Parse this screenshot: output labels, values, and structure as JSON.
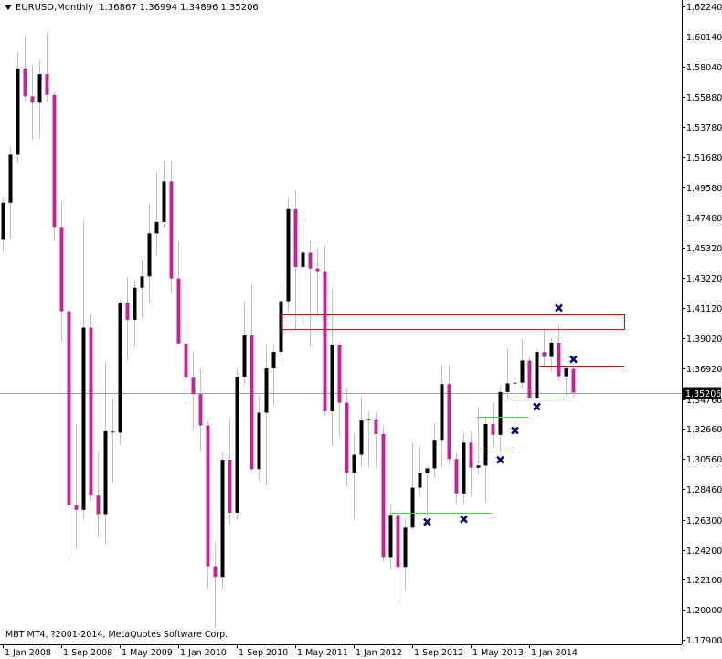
{
  "chart_data": {
    "type": "candlestick",
    "title": "EURUSD,Monthly",
    "footer": "MBT MT4, ?2001-2014, MetaQuotes Software Corp.",
    "categories": [
      "1 Jan 2008",
      null,
      null,
      null,
      null,
      null,
      null,
      null,
      "1 Sep 2008",
      null,
      null,
      null,
      null,
      null,
      null,
      null,
      "1 May 2009",
      null,
      null,
      null,
      null,
      null,
      null,
      null,
      "1 Jan 2010",
      null,
      null,
      null,
      null,
      null,
      null,
      null,
      "1 Sep 2010",
      null,
      null,
      null,
      null,
      null,
      null,
      null,
      "1 May 2011",
      null,
      null,
      null,
      null,
      null,
      null,
      null,
      "1 Jan 2012",
      null,
      null,
      null,
      null,
      null,
      null,
      null,
      "1 Sep 2012",
      null,
      null,
      null,
      null,
      null,
      null,
      null,
      "1 May 2013",
      null,
      null,
      null,
      null,
      null,
      null,
      null,
      "1 Jan 2014",
      null,
      null,
      null,
      null,
      null,
      null
    ],
    "open": [
      1.459,
      1.485,
      1.5185,
      1.579,
      1.5595,
      1.555,
      1.575,
      1.5605,
      1.468,
      1.409,
      1.273,
      1.27,
      1.3975,
      1.28,
      1.267,
      1.325,
      1.324,
      1.415,
      1.403,
      1.4255,
      1.4335,
      1.4635,
      1.4715,
      1.5,
      1.432,
      1.3865,
      1.3625,
      1.351,
      1.329,
      1.2305,
      1.223,
      1.305,
      1.268,
      1.363,
      1.392,
      1.2985,
      1.338,
      1.369,
      1.3805,
      1.416,
      1.4805,
      1.44,
      1.45,
      1.439,
      1.4365,
      1.339,
      1.3855,
      1.345,
      1.296,
      1.3085,
      1.3325,
      1.3335,
      1.323,
      1.237,
      1.2665,
      1.23,
      1.2575,
      1.2855,
      1.2955,
      1.299,
      1.319,
      1.358,
      1.3055,
      1.2815,
      1.317,
      1.2995,
      1.301,
      1.33,
      1.3225,
      1.3525,
      1.3585,
      1.359,
      1.3745,
      1.3485,
      1.3805,
      1.377,
      1.387,
      1.3635,
      1.36867
    ],
    "high": [
      1.4885,
      1.524,
      1.5905,
      1.602,
      1.582,
      1.5845,
      1.6038,
      1.562,
      1.4865,
      1.412,
      1.33,
      1.472,
      1.407,
      1.311,
      1.374,
      1.348,
      1.4175,
      1.4335,
      1.4305,
      1.4445,
      1.4845,
      1.5065,
      1.5145,
      1.5145,
      1.458,
      1.399,
      1.3805,
      1.369,
      1.332,
      1.247,
      1.3105,
      1.3335,
      1.369,
      1.416,
      1.428,
      1.35,
      1.386,
      1.386,
      1.4245,
      1.488,
      1.494,
      1.47,
      1.458,
      1.454,
      1.455,
      1.4245,
      1.3875,
      1.355,
      1.3235,
      1.349,
      1.3385,
      1.338,
      1.3285,
      1.2745,
      1.269,
      1.264,
      1.317,
      1.314,
      1.301,
      1.331,
      1.371,
      1.371,
      1.31,
      1.324,
      1.3245,
      1.3415,
      1.3345,
      1.345,
      1.357,
      1.383,
      1.362,
      1.3895,
      1.3775,
      1.3825,
      1.3965,
      1.3905,
      1.3995,
      1.37,
      1.36994
    ],
    "low": [
      1.4505,
      1.4595,
      1.513,
      1.556,
      1.5285,
      1.53,
      1.5555,
      1.458,
      1.388,
      1.233,
      1.242,
      1.263,
      1.276,
      1.251,
      1.2455,
      1.2885,
      1.3155,
      1.3745,
      1.384,
      1.4045,
      1.414,
      1.448,
      1.467,
      1.4215,
      1.3865,
      1.344,
      1.3265,
      1.3115,
      1.2145,
      1.1875,
      1.215,
      1.259,
      1.263,
      1.3575,
      1.297,
      1.2905,
      1.287,
      1.343,
      1.3735,
      1.4085,
      1.3965,
      1.4,
      1.384,
      1.405,
      1.336,
      1.3145,
      1.3215,
      1.286,
      1.2625,
      1.3,
      1.3,
      1.3,
      1.234,
      1.2285,
      1.204,
      1.2135,
      1.256,
      1.28,
      1.266,
      1.2925,
      1.3,
      1.302,
      1.2745,
      1.2745,
      1.2795,
      1.295,
      1.2755,
      1.313,
      1.31,
      1.348,
      1.3295,
      1.3545,
      1.348,
      1.3475,
      1.3705,
      1.367,
      1.36,
      1.35,
      1.34896
    ],
    "close": [
      1.485,
      1.5185,
      1.579,
      1.5595,
      1.555,
      1.575,
      1.5605,
      1.468,
      1.409,
      1.273,
      1.27,
      1.3975,
      1.28,
      1.267,
      1.325,
      1.324,
      1.415,
      1.403,
      1.4255,
      1.4335,
      1.4635,
      1.4715,
      1.5,
      1.432,
      1.3865,
      1.3625,
      1.351,
      1.329,
      1.2305,
      1.223,
      1.305,
      1.268,
      1.363,
      1.392,
      1.2985,
      1.338,
      1.369,
      1.3805,
      1.416,
      1.4805,
      1.44,
      1.45,
      1.439,
      1.4365,
      1.339,
      1.3855,
      1.345,
      1.296,
      1.3085,
      1.3325,
      1.3335,
      1.323,
      1.237,
      1.2665,
      1.23,
      1.2575,
      1.2855,
      1.2955,
      1.299,
      1.319,
      1.358,
      1.3055,
      1.2815,
      1.317,
      1.2995,
      1.301,
      1.33,
      1.3225,
      1.3525,
      1.3585,
      1.359,
      1.3745,
      1.3485,
      1.3805,
      1.377,
      1.387,
      1.3635,
      1.369,
      1.35206
    ],
    "bull_color": "#000000",
    "bear_color": "#c8219b",
    "wick_color": "#c0c0c0",
    "price_line_color": "#8fa3a3",
    "ylim": [
      1.1758,
      1.6269
    ],
    "yticks": [
      {
        "value": 1.6224,
        "label": "1.62240"
      },
      {
        "value": 1.6014,
        "label": "1.60140"
      },
      {
        "value": 1.5804,
        "label": "1.58040"
      },
      {
        "value": 1.5588,
        "label": "1.55880"
      },
      {
        "value": 1.5378,
        "label": "1.53780"
      },
      {
        "value": 1.5168,
        "label": "1.51680"
      },
      {
        "value": 1.4958,
        "label": "1.49580"
      },
      {
        "value": 1.4748,
        "label": "1.47480"
      },
      {
        "value": 1.4532,
        "label": "1.45320"
      },
      {
        "value": 1.4322,
        "label": "1.43220"
      },
      {
        "value": 1.4112,
        "label": "1.41120"
      },
      {
        "value": 1.3902,
        "label": "1.39020"
      },
      {
        "value": 1.3692,
        "label": "1.36920"
      },
      {
        "value": 1.3476,
        "label": "1.34760"
      },
      {
        "value": 1.3266,
        "label": "1.32660"
      },
      {
        "value": 1.3056,
        "label": "1.30560"
      },
      {
        "value": 1.2846,
        "label": "1.28460"
      },
      {
        "value": 1.263,
        "label": "1.26300"
      },
      {
        "value": 1.242,
        "label": "1.24200"
      },
      {
        "value": 1.221,
        "label": "1.22100"
      },
      {
        "value": 1.2,
        "label": "1.20000"
      },
      {
        "value": 1.179,
        "label": "1.17900"
      }
    ],
    "rectangles": [
      {
        "x": [
          38.1,
          85
        ],
        "y": [
          1.3965,
          1.4068
        ],
        "color": "#e00000"
      }
    ],
    "levels": [
      {
        "x": [
          73.4,
          85
        ],
        "y": 1.3709,
        "color": "#e00000"
      },
      {
        "x": [
          53.1,
          66.9
        ],
        "y": 1.2679,
        "color": "#33dd33"
      },
      {
        "x": [
          64.4,
          69.9
        ],
        "y": 1.3108,
        "color": "#33dd33"
      },
      {
        "x": [
          64.9,
          71.9
        ],
        "y": 1.3351,
        "color": "#33dd33"
      },
      {
        "x": [
          69,
          76.9
        ],
        "y": 1.3479,
        "color": "#33dd33"
      }
    ],
    "markers": {
      "x": [
        58,
        63,
        68,
        70,
        73,
        76,
        78
      ],
      "y": [
        1.2615,
        1.2634,
        1.305,
        1.3255,
        1.3422,
        1.4113,
        1.3754
      ],
      "color": "#000080"
    }
  }
}
